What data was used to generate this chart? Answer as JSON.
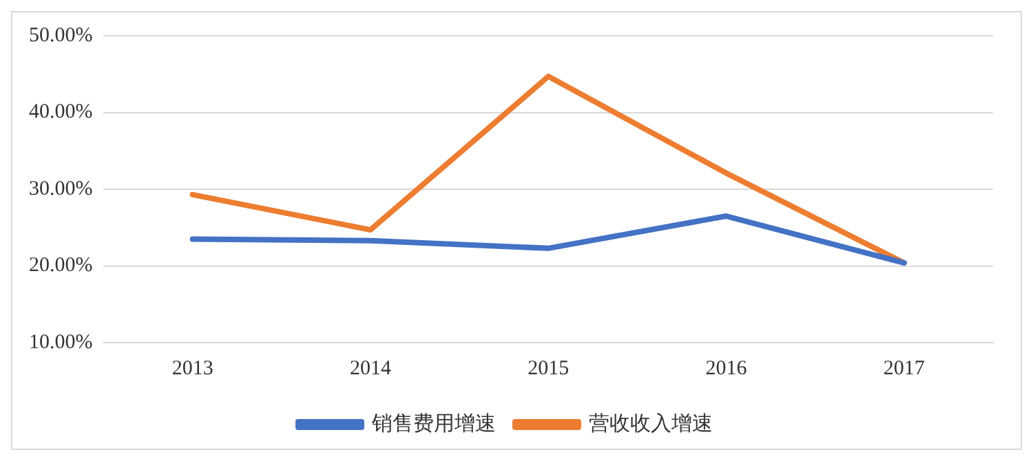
{
  "chart_data": {
    "type": "line",
    "categories": [
      "2013",
      "2014",
      "2015",
      "2016",
      "2017"
    ],
    "series": [
      {
        "name": "销售费用增速",
        "color": "#4472c4",
        "values": [
          23.5,
          23.3,
          22.3,
          26.5,
          20.4
        ]
      },
      {
        "name": "营收收入增速",
        "color": "#ed7d31",
        "values": [
          29.3,
          24.7,
          44.7,
          32.1,
          20.4
        ]
      }
    ],
    "ylim": [
      10,
      50
    ],
    "yticks": [
      {
        "value": 10,
        "label": "10.00%"
      },
      {
        "value": 20,
        "label": "20.00%"
      },
      {
        "value": 30,
        "label": "30.00%"
      },
      {
        "value": 40,
        "label": "40.00%"
      },
      {
        "value": 50,
        "label": "50.00%"
      }
    ],
    "grid": "y",
    "legend": "bottom",
    "marker": "none",
    "line_style": "solid"
  }
}
